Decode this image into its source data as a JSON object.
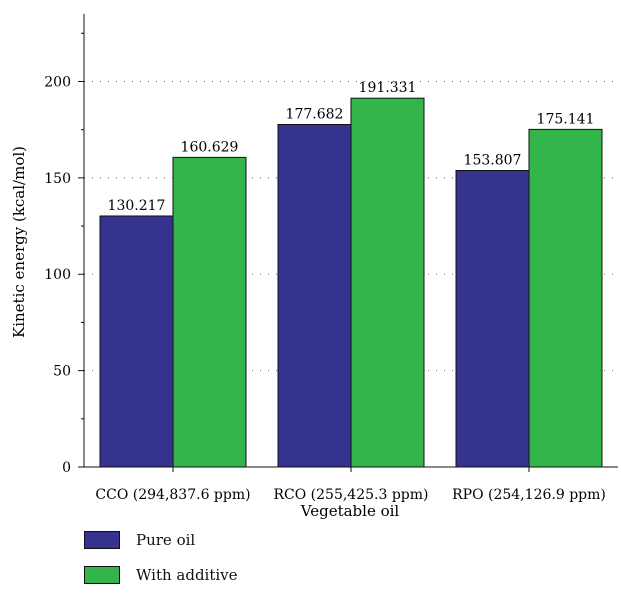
{
  "chart_data": {
    "type": "bar",
    "title": "",
    "xlabel": "Vegetable oil",
    "ylabel": "Kinetic energy (kcal/mol)",
    "categories": [
      "CCO (294,837.6 ppm)",
      "RCO (255,425.3 ppm)",
      "RPO (254,126.9 ppm)"
    ],
    "series": [
      {
        "name": "Pure oil",
        "values": [
          130.217,
          177.682,
          153.807
        ],
        "labels": [
          "130.217",
          "177.682",
          "153.807"
        ],
        "color": "#35338f"
      },
      {
        "name": "With additive",
        "values": [
          160.629,
          191.331,
          175.141
        ],
        "labels": [
          "160.629",
          "191.331",
          "175.141"
        ],
        "color": "#33b54c"
      }
    ],
    "ylim": [
      0,
      235
    ],
    "yticks": [
      0,
      50,
      100,
      150,
      200
    ],
    "grid": "dotted horizontal",
    "legend_position": "bottom-left"
  }
}
